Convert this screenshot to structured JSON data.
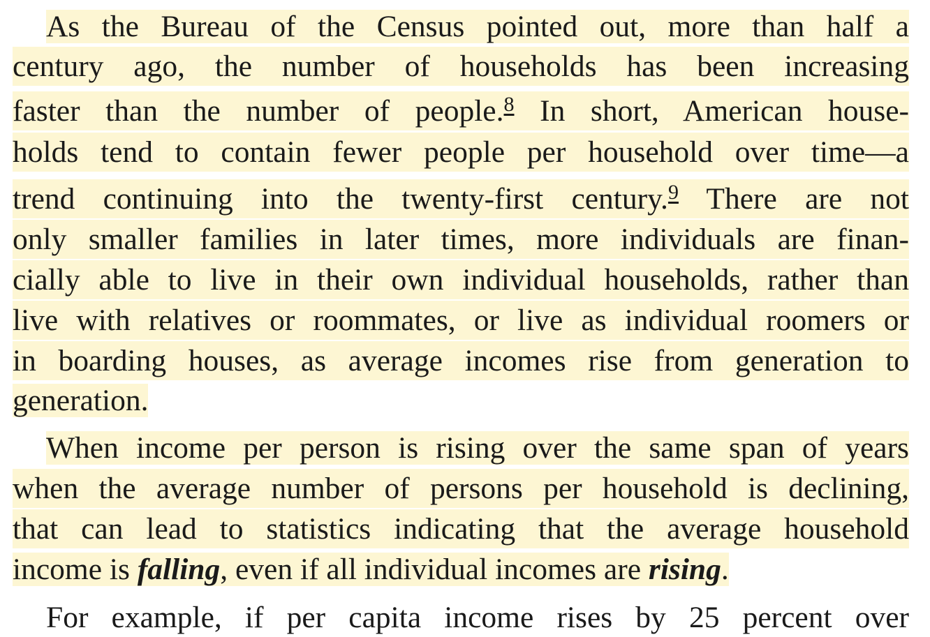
{
  "paragraphs": [
    {
      "lines": [
        "As the Bureau of the Census pointed out, more than half a",
        "century ago, the number of households has been increasing",
        {
          "before": "faster than the number of people.",
          "footnote": "8",
          "after": " In short, American house-"
        },
        "holds tend to contain fewer people per household over time—a",
        {
          "before": "trend continuing into the twenty-first century.",
          "footnote": "9",
          "after": " There are not"
        },
        "only smaller families in later times, more individuals are finan-",
        "cially able to live in their own individual households, rather than",
        "live with relatives or roommates, or live as individual roomers or",
        "in boarding houses, as average incomes rise from generation to",
        "generation."
      ]
    },
    {
      "lines": [
        "When income per person is rising over the same span of years",
        "when the average number of persons per household is declining,",
        "that can lead to statistics indicating that the average household",
        {
          "p1": "income is ",
          "em1": "falling",
          "p2": ", even if all individual incomes are ",
          "em2": "rising",
          "p3": "."
        }
      ]
    },
    {
      "lines": [
        "For example, if per capita income rises by 25 percent over"
      ]
    }
  ],
  "colors": {
    "highlight": "#fdf6d3",
    "text": "#1a1a1a"
  }
}
